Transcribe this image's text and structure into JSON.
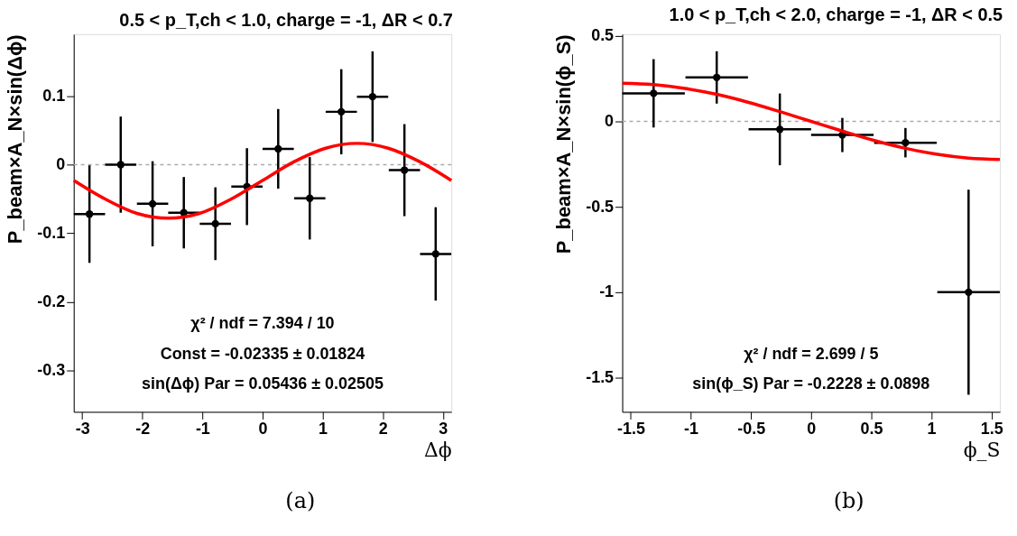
{
  "chart_data": [
    {
      "type": "scatter",
      "title": "0.5 < p_T,ch < 1.0, charge = -1, ΔR < 0.7",
      "xlabel": "Δϕ",
      "ylabel": "P_beam×A_N×sin(Δϕ)",
      "xlim": [
        -3.1416,
        3.1416
      ],
      "ylim": [
        -0.36,
        0.19
      ],
      "xticks": [
        -3,
        -2,
        -1,
        0,
        1,
        2,
        3
      ],
      "yticks": [
        -0.3,
        -0.2,
        -0.1,
        0,
        0.1
      ],
      "series": [
        {
          "type": "scatter",
          "marker": "circle",
          "color": "#000000",
          "x": [
            -2.88,
            -2.36,
            -1.83,
            -1.31,
            -0.785,
            -0.26,
            0.26,
            0.785,
            1.31,
            1.83,
            2.36,
            2.88
          ],
          "values": [
            -0.072,
            0.0,
            -0.057,
            -0.07,
            -0.086,
            -0.032,
            0.023,
            -0.049,
            0.077,
            0.099,
            -0.008,
            -0.13
          ],
          "errors": [
            0.071,
            0.07,
            0.062,
            0.052,
            0.053,
            0.056,
            0.058,
            0.06,
            0.062,
            0.066,
            0.067,
            0.068
          ],
          "xerrors": [
            0.26,
            0.26,
            0.26,
            0.26,
            0.26,
            0.26,
            0.26,
            0.26,
            0.26,
            0.26,
            0.26,
            0.26
          ]
        },
        {
          "type": "line",
          "color": "#ff0000",
          "x": [
            -3.14,
            -2.62,
            -2.09,
            -1.57,
            -1.05,
            -0.52,
            0,
            0.52,
            1.05,
            1.57,
            2.09,
            2.62,
            3.14
          ],
          "values": [
            -0.023,
            -0.05,
            -0.071,
            -0.078,
            -0.071,
            -0.05,
            -0.023,
            0.004,
            0.024,
            0.031,
            0.024,
            0.004,
            -0.023
          ]
        }
      ],
      "ref_lines": [
        {
          "axis": "y",
          "value": 0,
          "color": "#aaaaaa",
          "line_style": "dashed"
        }
      ],
      "annotations": [
        "χ² / ndf = 7.394 / 10",
        "Const = -0.02335 ± 0.01824",
        "sin(Δϕ) Par =  0.05436 ± 0.02505",
        "(a)"
      ]
    },
    {
      "type": "scatter",
      "title": "1.0 < p_T,ch < 2.0, charge = -1, ΔR < 0.5",
      "xlabel": "ϕ_S",
      "ylabel": "P_beam×A_N×sin(ϕ_S)",
      "xlim": [
        -1.5708,
        1.5708
      ],
      "ylim": [
        -1.7,
        0.51
      ],
      "xticks": [
        -1.5,
        -1,
        -0.5,
        0,
        0.5,
        1,
        1.5
      ],
      "yticks": [
        -1.5,
        -1,
        -0.5,
        0,
        0.5
      ],
      "series": [
        {
          "type": "scatter",
          "marker": "circle",
          "color": "#000000",
          "x": [
            -1.31,
            -0.785,
            -0.26,
            0.26,
            0.785,
            1.31
          ],
          "values": [
            0.164,
            0.257,
            -0.047,
            -0.08,
            -0.125,
            -1.0
          ],
          "errors": [
            0.2,
            0.153,
            0.21,
            0.1,
            0.086,
            0.6
          ],
          "xerrors": [
            0.26,
            0.26,
            0.26,
            0.26,
            0.26,
            0.26
          ]
        },
        {
          "type": "line",
          "color": "#ff0000",
          "x": [
            -1.57,
            -1.31,
            -1.05,
            -0.785,
            -0.52,
            -0.26,
            0,
            0.26,
            0.52,
            0.785,
            1.05,
            1.31,
            1.57
          ],
          "values": [
            0.223,
            0.215,
            0.193,
            0.158,
            0.111,
            0.057,
            0,
            -0.057,
            -0.111,
            -0.158,
            -0.193,
            -0.215,
            -0.223
          ]
        }
      ],
      "ref_lines": [
        {
          "axis": "y",
          "value": 0,
          "color": "#aaaaaa",
          "line_style": "dashed"
        }
      ],
      "annotations": [
        "χ² / ndf = 2.699 / 5",
        "sin(ϕ_S) Par =  -0.2228 ± 0.0898",
        "(b)"
      ]
    }
  ]
}
